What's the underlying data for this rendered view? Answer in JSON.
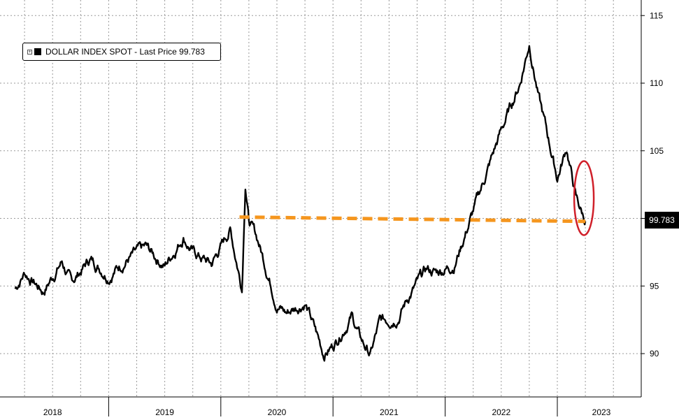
{
  "legend": {
    "expand_icon": "expand-icon",
    "label": "DOLLAR INDEX SPOT - Last Price 99.783"
  },
  "last_price_label": "99.783",
  "colors": {
    "series": "#000000",
    "reference_line": "#F5961E",
    "highlight_ellipse": "#D0202A",
    "grid": "#9a9a9a",
    "background": "#FFFFFF"
  },
  "chart_data": {
    "type": "line",
    "title": "",
    "xlabel": "",
    "ylabel": "",
    "ylim": [
      87,
      116
    ],
    "y_ticks": [
      90,
      95,
      100,
      105,
      110,
      115
    ],
    "y_tick_labels": [
      "90",
      "95",
      "",
      "105",
      "110",
      "115"
    ],
    "x_tick_labels": [
      "2018",
      "2019",
      "2020",
      "2021",
      "2022",
      "2023"
    ],
    "grid": true,
    "legend_position": "top-left",
    "series": [
      {
        "name": "DOLLAR INDEX SPOT - Last Price 99.783",
        "x": [
          "2018-03",
          "2018-04",
          "2018-06",
          "2018-08",
          "2018-09",
          "2018-11",
          "2019-01",
          "2019-03",
          "2019-05",
          "2019-07",
          "2019-09",
          "2019-10",
          "2019-12",
          "2020-02",
          "2020-03-09",
          "2020-03-20",
          "2020-04",
          "2020-05",
          "2020-07",
          "2020-08",
          "2020-10",
          "2020-12",
          "2021-01",
          "2021-03",
          "2021-04",
          "2021-05",
          "2021-06",
          "2021-08",
          "2021-09",
          "2021-11",
          "2021-12",
          "2022-02",
          "2022-04",
          "2022-06",
          "2022-07",
          "2022-09",
          "2022-10",
          "2022-11",
          "2023-01",
          "2023-02",
          "2023-03",
          "2023-04"
        ],
        "values": [
          94.8,
          96.0,
          94.6,
          96.8,
          95.2,
          97.0,
          95.8,
          97.0,
          97.8,
          96.5,
          98.7,
          97.5,
          96.6,
          99.2,
          94.9,
          102.8,
          99.9,
          98.3,
          93.7,
          93.0,
          93.8,
          90.0,
          90.6,
          92.8,
          91.0,
          89.9,
          92.3,
          92.8,
          94.1,
          96.2,
          96.0,
          96.6,
          100.5,
          104.5,
          106.5,
          110.0,
          113.0,
          109.0,
          103.0,
          105.2,
          101.5,
          99.783
        ]
      }
    ],
    "reference_line": {
      "y_start": 100.1,
      "y_end": 99.78,
      "x_start": "2020-03",
      "x_end": "2023-04",
      "style": "dashed"
    },
    "annotations": [
      "red ellipse around latest drop",
      "last price tag 99.783"
    ]
  }
}
